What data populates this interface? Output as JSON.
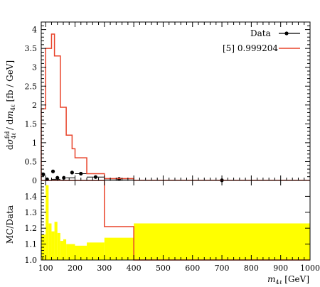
{
  "chart_data": [
    {
      "panel": "main",
      "type": "line",
      "ylabel": "dσ^fid_4ℓ / dm_4ℓ [fb / GeV]",
      "ylim": [
        0,
        4.2
      ],
      "xlim": [
        85,
        1000
      ],
      "yticks": [
        "0",
        "0.5",
        "1",
        "1.5",
        "2",
        "2.5",
        "3",
        "3.5",
        "4"
      ],
      "legend": {
        "position": "top-right",
        "data_label": "Data",
        "mc_label": "[5] 0.999204",
        "data_color": "#000000",
        "mc_color": "#e8432a"
      },
      "data_points": [
        {
          "x": 92,
          "y": 0.16
        },
        {
          "x": 105,
          "y": 0.03
        },
        {
          "x": 125,
          "y": 0.24
        },
        {
          "x": 140,
          "y": 0.07
        },
        {
          "x": 162,
          "y": 0.07
        },
        {
          "x": 190,
          "y": 0.21
        },
        {
          "x": 220,
          "y": 0.18
        },
        {
          "x": 270,
          "y": 0.09
        },
        {
          "x": 350,
          "y": 0.04
        },
        {
          "x": 700,
          "y": 0.005
        }
      ],
      "data_xerr": [
        {
          "x": 135,
          "lo": 120,
          "hi": 150
        },
        {
          "x": 180,
          "lo": 170,
          "hi": 200
        },
        {
          "x": 225,
          "lo": 200,
          "hi": 240
        },
        {
          "x": 270,
          "lo": 240,
          "hi": 300
        },
        {
          "x": 350,
          "lo": 300,
          "hi": 400
        },
        {
          "x": 700,
          "lo": 400,
          "hi": 1000
        }
      ],
      "mc_bins": [
        {
          "lo": 85,
          "hi": 100,
          "y": 1.9
        },
        {
          "lo": 100,
          "hi": 120,
          "y": 3.5
        },
        {
          "lo": 120,
          "hi": 130,
          "y": 3.88
        },
        {
          "lo": 130,
          "hi": 150,
          "y": 3.3
        },
        {
          "lo": 150,
          "hi": 170,
          "y": 1.94
        },
        {
          "lo": 170,
          "hi": 190,
          "y": 1.2
        },
        {
          "lo": 190,
          "hi": 200,
          "y": 0.84
        },
        {
          "lo": 200,
          "hi": 240,
          "y": 0.6
        },
        {
          "lo": 240,
          "hi": 300,
          "y": 0.18
        },
        {
          "lo": 300,
          "hi": 400,
          "y": 0.05
        },
        {
          "lo": 400,
          "hi": 1000,
          "y": 0.005
        }
      ]
    },
    {
      "panel": "ratio",
      "type": "area",
      "ylabel": "MC/Data",
      "ylim": [
        1.0,
        1.5
      ],
      "yticks": [
        "1.0",
        "1.1",
        "1.2",
        "1.3",
        "1.4"
      ],
      "xlabel": "m_4ℓ [GeV]",
      "xticks": [
        100,
        200,
        300,
        400,
        500,
        600,
        700,
        800,
        900,
        1000
      ],
      "band_color": "#ffff00",
      "band_bins": [
        {
          "lo": 85,
          "hi": 100,
          "y": 1.16
        },
        {
          "lo": 100,
          "hi": 110,
          "y": 1.47
        },
        {
          "lo": 110,
          "hi": 120,
          "y": 1.23
        },
        {
          "lo": 120,
          "hi": 130,
          "y": 1.18
        },
        {
          "lo": 130,
          "hi": 140,
          "y": 1.24
        },
        {
          "lo": 140,
          "hi": 150,
          "y": 1.17
        },
        {
          "lo": 150,
          "hi": 160,
          "y": 1.12
        },
        {
          "lo": 160,
          "hi": 170,
          "y": 1.13
        },
        {
          "lo": 170,
          "hi": 200,
          "y": 1.1
        },
        {
          "lo": 200,
          "hi": 240,
          "y": 1.09
        },
        {
          "lo": 240,
          "hi": 300,
          "y": 1.11
        },
        {
          "lo": 300,
          "hi": 400,
          "y": 1.14
        },
        {
          "lo": 400,
          "hi": 1000,
          "y": 1.23
        }
      ],
      "mc_line": [
        {
          "lo": 85,
          "hi": 300,
          "y": 1.52
        },
        {
          "lo": 300,
          "hi": 400,
          "y": 1.21
        },
        {
          "lo": 400,
          "hi": 1000,
          "y": 1.0
        }
      ]
    }
  ]
}
